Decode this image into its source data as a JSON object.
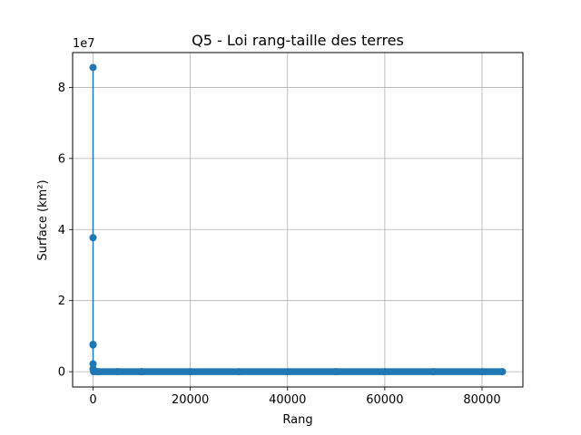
{
  "chart_data": {
    "type": "line",
    "title": "Q5 - Loi rang-taille des terres",
    "xlabel": "Rang",
    "ylabel": "Surface (km²)",
    "y_scale_label": "1e7",
    "xlim": [
      -4200,
      88400
    ],
    "ylim": [
      -4300000,
      89800000
    ],
    "x_ticks": [
      0,
      20000,
      40000,
      60000,
      80000
    ],
    "x_tick_labels": [
      "0",
      "20000",
      "40000",
      "60000",
      "80000"
    ],
    "y_ticks": [
      0,
      20000000,
      40000000,
      60000000,
      80000000
    ],
    "y_tick_labels": [
      "0",
      "2",
      "4",
      "6",
      "8"
    ],
    "grid": true,
    "marker": "circle",
    "series_color": "#1f77b4",
    "series": [
      {
        "x": [
          1,
          2,
          3,
          4,
          5,
          6,
          100,
          1000,
          5000,
          10000,
          20000,
          30000,
          40000,
          50000,
          60000,
          70000,
          80000,
          84200
        ],
        "values": [
          85600000,
          37700000,
          7700000,
          7500000,
          2200000,
          800000,
          20000,
          1000,
          200,
          100,
          50,
          20,
          10,
          5,
          3,
          2,
          1,
          1
        ]
      }
    ],
    "dense_segment": {
      "x_start": 100,
      "x_end": 84200,
      "y": 0
    }
  }
}
